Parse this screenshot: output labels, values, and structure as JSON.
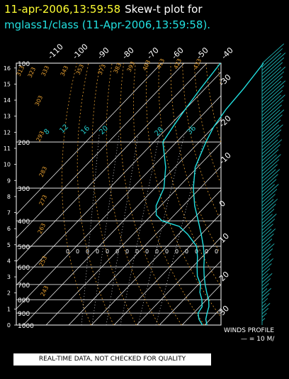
{
  "header": {
    "timestamp": "11-apr-2006,13:59:58",
    "plot_name": "Skew-t plot for",
    "station_line": "mglass1/class (11-Apr-2006,13:59:58)."
  },
  "winds": {
    "label": "WINDS PROFILE",
    "scale": "— = 10 M/"
  },
  "qa_note": "REAL-TIME DATA, NOT CHECKED FOR QUALITY",
  "colors": {
    "temperature": "#22e0e0",
    "dewpoint": "#22e0e0",
    "isotherm": "#ffffff",
    "dry_adiabat": "#e8a030",
    "mixing_ratio": "#ffffff",
    "title_accent": "#ffff33"
  },
  "chart_data": {
    "type": "line",
    "pressure_levels": [
      1000,
      900,
      800,
      700,
      600,
      500,
      400,
      300,
      200,
      100
    ],
    "pressure_labels": [
      "1000",
      "900",
      "800",
      "700",
      "600",
      "500",
      "400",
      "300",
      "200",
      "100"
    ],
    "height_km_ticks": [
      0,
      1,
      2,
      3,
      4,
      5,
      6,
      7,
      8,
      9,
      10,
      11,
      12,
      13,
      14,
      15,
      16
    ],
    "isotherm_top_labels": [
      "-110",
      "-100",
      "-90",
      "-80",
      "-70",
      "-60",
      "-50",
      "-40"
    ],
    "isotherm_right_labels": [
      "-30",
      "-20",
      "-10",
      "0",
      "10",
      "20",
      "30"
    ],
    "dry_adiabat_labels": [
      "313",
      "323",
      "333",
      "343",
      "353",
      "373",
      "383",
      "393",
      "403",
      "413",
      "423",
      "433",
      "303",
      "293",
      "283",
      "273",
      "263",
      "253",
      "243"
    ],
    "mixing_ratio_labels": [
      "8",
      "12",
      "16",
      "20",
      "28",
      "36"
    ],
    "moist_markers_label": "0",
    "series": [
      {
        "role": "temperature",
        "points": [
          [
            1000,
            21
          ],
          [
            950,
            18
          ],
          [
            900,
            16
          ],
          [
            850,
            14
          ],
          [
            800,
            11
          ],
          [
            750,
            7
          ],
          [
            700,
            3
          ],
          [
            650,
            -1
          ],
          [
            600,
            -5
          ],
          [
            550,
            -9
          ],
          [
            500,
            -14
          ],
          [
            450,
            -20
          ],
          [
            400,
            -27
          ],
          [
            350,
            -35
          ],
          [
            300,
            -43
          ],
          [
            250,
            -51
          ],
          [
            200,
            -57
          ],
          [
            175,
            -60
          ],
          [
            150,
            -62
          ],
          [
            125,
            -63
          ],
          [
            100,
            -65
          ]
        ]
      },
      {
        "role": "dewpoint",
        "points": [
          [
            1000,
            19
          ],
          [
            950,
            15
          ],
          [
            900,
            12
          ],
          [
            850,
            11
          ],
          [
            800,
            8
          ],
          [
            750,
            4
          ],
          [
            700,
            1
          ],
          [
            650,
            -4
          ],
          [
            600,
            -8
          ],
          [
            550,
            -12
          ],
          [
            500,
            -17
          ],
          [
            450,
            -26
          ],
          [
            420,
            -33
          ],
          [
            400,
            -43
          ],
          [
            380,
            -48
          ],
          [
            350,
            -52
          ],
          [
            300,
            -56
          ],
          [
            250,
            -64
          ],
          [
            200,
            -76
          ],
          [
            175,
            -78
          ],
          [
            150,
            -80
          ],
          [
            125,
            -82
          ],
          [
            100,
            -84
          ]
        ]
      }
    ]
  }
}
